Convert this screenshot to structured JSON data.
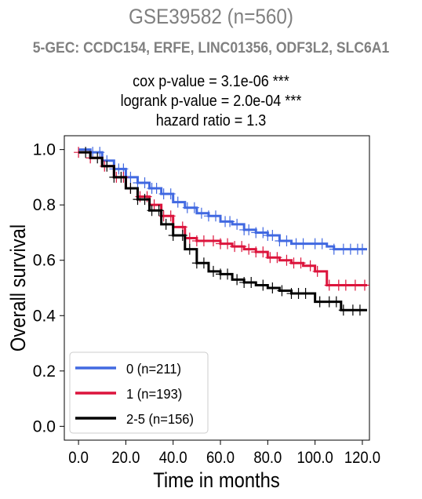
{
  "header": {
    "title": "GSE39582 (n=560)",
    "subtitle": "5-GEC: CCDC154, ERFE, LINC01356, ODF3L2, SLC6A1",
    "stats": [
      "cox p-value = 3.1e-06 ***",
      "logrank p-value = 2.0e-04 ***",
      "hazard ratio = 1.3"
    ]
  },
  "chart_data": {
    "type": "line",
    "subtype": "kaplan-meier",
    "xlabel": "Time in months",
    "ylabel": "Overall survival",
    "xlim": [
      -6,
      123
    ],
    "ylim": [
      -0.05,
      1.05
    ],
    "xticks": [
      "0.0",
      "20.0",
      "40.0",
      "60.0",
      "80.0",
      "100.0",
      "120.0"
    ],
    "yticks": [
      "0.0",
      "0.2",
      "0.4",
      "0.6",
      "0.8",
      "1.0"
    ],
    "legend_position": "lower-left",
    "series": [
      {
        "name": "0 (n=211)",
        "color": "#4169e1",
        "points": [
          [
            0,
            1.0
          ],
          [
            5,
            0.99
          ],
          [
            10,
            0.96
          ],
          [
            15,
            0.93
          ],
          [
            20,
            0.9
          ],
          [
            25,
            0.88
          ],
          [
            30,
            0.86
          ],
          [
            35,
            0.84
          ],
          [
            40,
            0.81
          ],
          [
            45,
            0.79
          ],
          [
            50,
            0.77
          ],
          [
            55,
            0.76
          ],
          [
            60,
            0.74
          ],
          [
            65,
            0.73
          ],
          [
            70,
            0.71
          ],
          [
            75,
            0.7
          ],
          [
            80,
            0.69
          ],
          [
            85,
            0.67
          ],
          [
            90,
            0.66
          ],
          [
            95,
            0.66
          ],
          [
            100,
            0.66
          ],
          [
            105,
            0.65
          ],
          [
            108,
            0.64
          ],
          [
            122,
            0.64
          ]
        ],
        "censor_x": [
          6,
          9,
          12,
          15,
          17,
          19,
          22,
          25,
          28,
          31,
          33,
          36,
          39,
          42,
          46,
          49,
          52,
          55,
          58,
          62,
          64,
          67,
          70,
          72,
          75,
          78,
          80,
          82,
          85,
          88,
          92,
          95,
          100,
          103,
          108,
          112,
          115,
          118,
          120
        ]
      },
      {
        "name": "1 (n=193)",
        "color": "#dc143c",
        "points": [
          [
            0,
            0.99
          ],
          [
            5,
            0.97
          ],
          [
            10,
            0.94
          ],
          [
            15,
            0.9
          ],
          [
            20,
            0.86
          ],
          [
            25,
            0.83
          ],
          [
            30,
            0.8
          ],
          [
            35,
            0.76
          ],
          [
            40,
            0.72
          ],
          [
            45,
            0.68
          ],
          [
            50,
            0.67
          ],
          [
            55,
            0.67
          ],
          [
            60,
            0.66
          ],
          [
            65,
            0.65
          ],
          [
            70,
            0.64
          ],
          [
            75,
            0.63
          ],
          [
            80,
            0.61
          ],
          [
            85,
            0.6
          ],
          [
            90,
            0.59
          ],
          [
            95,
            0.58
          ],
          [
            100,
            0.56
          ],
          [
            104,
            0.56
          ],
          [
            105,
            0.51
          ],
          [
            122,
            0.51
          ]
        ],
        "censor_x": [
          0,
          5,
          11,
          16,
          19,
          22,
          26,
          29,
          32,
          36,
          39,
          44,
          47,
          50,
          53,
          57,
          60,
          63,
          66,
          69,
          72,
          75,
          78,
          81,
          84,
          88,
          91,
          94,
          98,
          101,
          106,
          110,
          113,
          117,
          121
        ]
      },
      {
        "name": "2-5 (n=156)",
        "color": "#000000",
        "points": [
          [
            0,
            0.99
          ],
          [
            5,
            0.97
          ],
          [
            10,
            0.94
          ],
          [
            15,
            0.9
          ],
          [
            20,
            0.86
          ],
          [
            25,
            0.82
          ],
          [
            30,
            0.78
          ],
          [
            35,
            0.73
          ],
          [
            40,
            0.69
          ],
          [
            45,
            0.64
          ],
          [
            50,
            0.59
          ],
          [
            55,
            0.56
          ],
          [
            60,
            0.55
          ],
          [
            65,
            0.53
          ],
          [
            70,
            0.52
          ],
          [
            75,
            0.51
          ],
          [
            80,
            0.5
          ],
          [
            85,
            0.49
          ],
          [
            90,
            0.48
          ],
          [
            95,
            0.48
          ],
          [
            100,
            0.45
          ],
          [
            110,
            0.45
          ],
          [
            111,
            0.42
          ],
          [
            122,
            0.42
          ]
        ],
        "censor_x": [
          3,
          8,
          12,
          15,
          18,
          22,
          25,
          28,
          31,
          34,
          37,
          40,
          44,
          47,
          50,
          53,
          57,
          60,
          63,
          67,
          70,
          73,
          78,
          82,
          86,
          90,
          93,
          96,
          102,
          106,
          109,
          112,
          116,
          119
        ]
      }
    ]
  }
}
